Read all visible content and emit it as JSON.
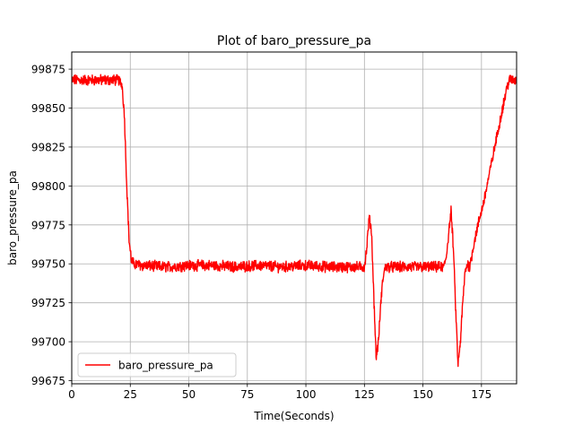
{
  "chart_data": {
    "type": "line",
    "title": "Plot of baro_pressure_pa",
    "xlabel": "Time(Seconds)",
    "ylabel": "baro_pressure_pa",
    "xlim": [
      0,
      190
    ],
    "ylim": [
      99673,
      99886
    ],
    "x_ticks": [
      0,
      25,
      50,
      75,
      100,
      125,
      150,
      175
    ],
    "y_ticks": [
      99675,
      99700,
      99725,
      99750,
      99775,
      99800,
      99825,
      99850,
      99875
    ],
    "grid": true,
    "legend_position": "lower-left",
    "series": [
      {
        "name": "baro_pressure_pa",
        "color": "#ff0000",
        "x": [
          0,
          5,
          10,
          15,
          20,
          21.5,
          22.5,
          23.5,
          24.5,
          25.5,
          26.5,
          30,
          40,
          50,
          60,
          70,
          80,
          90,
          100,
          110,
          120,
          125,
          126,
          127,
          128,
          129,
          130,
          131,
          132,
          133,
          134,
          135,
          140,
          145,
          150,
          155,
          159,
          160,
          161,
          162,
          163,
          164,
          165,
          166,
          167,
          168,
          169,
          170,
          172,
          174,
          176,
          178,
          180,
          182,
          184,
          186,
          187,
          188,
          190
        ],
        "y": [
          99868,
          99868,
          99868,
          99868,
          99868,
          99865,
          99845,
          99800,
          99765,
          99752,
          99750,
          99749,
          99748,
          99749,
          99749,
          99748,
          99749,
          99748,
          99749,
          99748,
          99748,
          99748,
          99760,
          99780,
          99772,
          99730,
          99690,
          99700,
          99725,
          99742,
          99748,
          99748,
          99748,
          99748,
          99748,
          99748,
          99748,
          99755,
          99770,
          99784,
          99760,
          99720,
          99685,
          99700,
          99725,
          99745,
          99750,
          99748,
          99765,
          99778,
          99790,
          99805,
          99820,
          99835,
          99850,
          99864,
          99868,
          99868,
          99868
        ]
      }
    ]
  }
}
